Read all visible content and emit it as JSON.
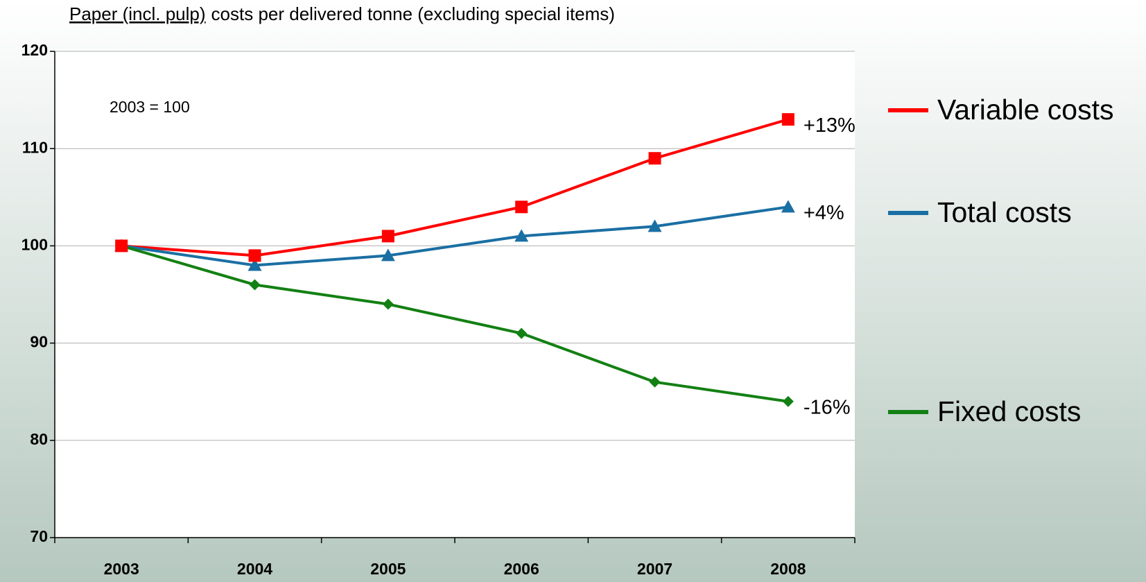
{
  "chart_data": {
    "type": "line",
    "title": [
      "Paper (incl. pulp)",
      "costs per delivered tonne (excluding special items)"
    ],
    "annotation": "2003 = 100",
    "categories": [
      "2003",
      "2004",
      "2005",
      "2006",
      "2007",
      "2008"
    ],
    "series": [
      {
        "name": "Variable costs",
        "color": "#ff0000",
        "marker": "square",
        "values": [
          100,
          99,
          101,
          104,
          109,
          113
        ],
        "end_label": "+13%"
      },
      {
        "name": "Total costs",
        "color": "#1a6fa3",
        "marker": "triangle",
        "values": [
          100,
          98,
          99,
          101,
          102,
          104
        ],
        "end_label": "+4%"
      },
      {
        "name": "Fixed costs",
        "color": "#138013",
        "marker": "diamond",
        "values": [
          100,
          96,
          94,
          91,
          86,
          84
        ],
        "end_label": "-16%"
      }
    ],
    "ylim": [
      70,
      120
    ],
    "yticks": [
      70,
      80,
      90,
      100,
      110,
      120
    ],
    "grid": true,
    "legend": "right"
  }
}
